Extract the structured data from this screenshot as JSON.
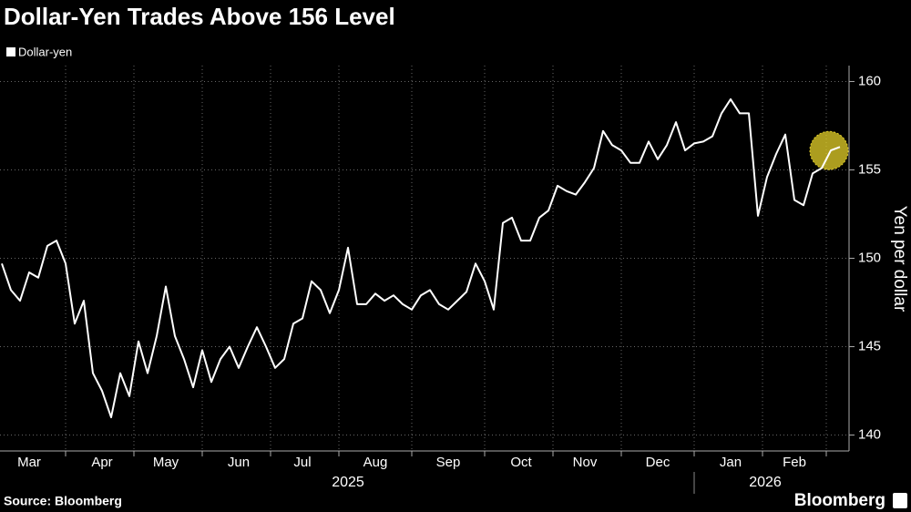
{
  "chart_data": {
    "type": "line",
    "title": "Dollar-Yen Trades Above 156 Level",
    "y_label": "Yen per dollar",
    "source": "Source: Bloomberg",
    "brand": "Bloomberg",
    "years": [
      "2025",
      "2026"
    ],
    "categories": [
      null,
      null,
      null,
      "Mar",
      null,
      null,
      null,
      null,
      null,
      null,
      null,
      "Apr",
      null,
      null,
      null,
      null,
      null,
      null,
      "May",
      null,
      null,
      null,
      null,
      null,
      null,
      null,
      "Jun",
      null,
      null,
      null,
      null,
      null,
      null,
      "Jul",
      null,
      null,
      null,
      null,
      null,
      null,
      null,
      "Aug",
      null,
      null,
      null,
      null,
      null,
      null,
      null,
      "Sep",
      null,
      null,
      null,
      null,
      null,
      null,
      null,
      "Oct",
      null,
      null,
      null,
      null,
      null,
      null,
      "Nov",
      null,
      null,
      null,
      null,
      null,
      null,
      null,
      "Dec",
      null,
      null,
      null,
      null,
      null,
      null,
      null,
      "Jan",
      null,
      null,
      null,
      null,
      null,
      null,
      "Feb",
      null,
      null,
      null,
      null,
      null
    ],
    "series": [
      {
        "name": "Dollar-yen",
        "color": "#ffffff",
        "values": [
          149.7,
          148.2,
          147.6,
          149.2,
          148.9,
          150.7,
          151.0,
          149.7,
          146.3,
          147.6,
          143.5,
          142.5,
          141.0,
          143.5,
          142.2,
          145.3,
          143.5,
          145.6,
          148.4,
          145.6,
          144.3,
          142.7,
          144.8,
          143.0,
          144.3,
          145.0,
          143.8,
          145.0,
          146.1,
          145.0,
          143.8,
          144.3,
          146.3,
          146.6,
          148.7,
          148.2,
          146.9,
          148.2,
          150.6,
          147.4,
          147.4,
          148.0,
          147.6,
          147.9,
          147.4,
          147.1,
          147.9,
          148.2,
          147.4,
          147.1,
          147.6,
          148.1,
          149.7,
          148.7,
          147.1,
          152.0,
          152.3,
          151.0,
          151.0,
          152.3,
          152.7,
          154.1,
          153.8,
          153.6,
          154.3,
          155.1,
          157.2,
          156.4,
          156.1,
          155.4,
          155.4,
          156.6,
          155.6,
          156.4,
          157.7,
          156.1,
          156.5,
          156.6,
          156.9,
          158.2,
          159.0,
          158.2,
          158.2,
          152.4,
          154.6,
          155.9,
          157.0,
          153.3,
          153.0,
          154.8,
          155.1,
          156.1,
          156.3
        ]
      }
    ],
    "ylim": [
      139.1,
      160.9
    ],
    "yticks": [
      140,
      145,
      150,
      155,
      160
    ],
    "grid": true,
    "highlight_color": "#e6d22a"
  }
}
